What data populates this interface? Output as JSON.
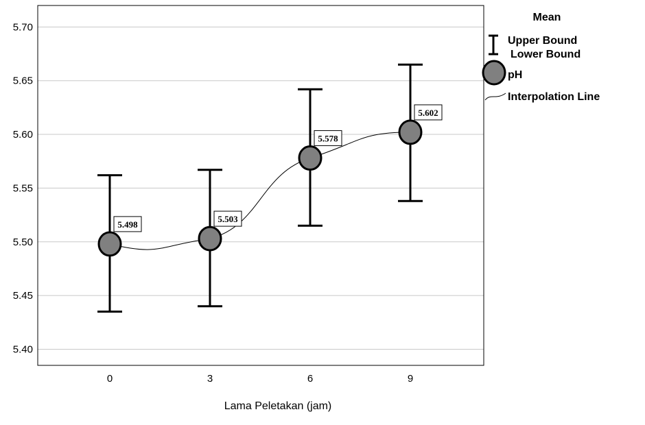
{
  "chart_data": {
    "type": "line",
    "title": "",
    "xlabel": "Lama Peletakan (jam)",
    "ylabel": "",
    "categories": [
      "0",
      "3",
      "6",
      "9"
    ],
    "x": [
      0,
      3,
      6,
      9
    ],
    "series": [
      {
        "name": "pH",
        "values": [
          5.498,
          5.503,
          5.578,
          5.602
        ],
        "upper": [
          5.562,
          5.567,
          5.642,
          5.665
        ],
        "lower": [
          5.435,
          5.44,
          5.515,
          5.538
        ],
        "labels": [
          "5.498",
          "5.503",
          "5.578",
          "5.602"
        ]
      }
    ],
    "ylim": [
      5.385,
      5.72
    ],
    "yticks": [
      "5.40",
      "5.45",
      "5.50",
      "5.55",
      "5.60",
      "5.65",
      "5.70"
    ],
    "grid": true,
    "legend": {
      "title": "Mean",
      "items": [
        "Upper Bound",
        "Lower Bound",
        "pH",
        "Interpolation Line"
      ],
      "position": "right"
    },
    "colors": {
      "marker_fill": "#808080",
      "stroke": "#000000",
      "grid": "#c8c8c8"
    }
  }
}
